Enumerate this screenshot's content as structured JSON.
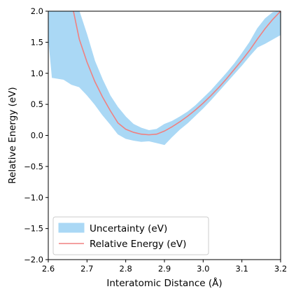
{
  "chart_data": {
    "type": "line",
    "title": "",
    "xlabel": "Interatomic Distance (Å)",
    "ylabel": "Relative Energy (eV)",
    "xlim": [
      2.6,
      3.2
    ],
    "ylim": [
      -2.0,
      2.0
    ],
    "xticks": [
      2.6,
      2.7,
      2.8,
      2.9,
      3.0,
      3.1,
      3.2
    ],
    "xtick_labels": [
      "2.6",
      "2.7",
      "2.8",
      "2.9",
      "3.0",
      "3.1",
      "3.2"
    ],
    "yticks": [
      -2.0,
      -1.5,
      -1.0,
      -0.5,
      0.0,
      0.5,
      1.0,
      1.5,
      2.0
    ],
    "ytick_labels": [
      "−2.0",
      "−1.5",
      "−1.0",
      "−0.5",
      "0.0",
      "0.5",
      "1.0",
      "1.5",
      "2.0"
    ],
    "grid": false,
    "legend_position": "lower-left",
    "series": [
      {
        "name": "Relative Energy (eV)",
        "kind": "line",
        "color": "#f08080",
        "x": [
          2.665,
          2.68,
          2.7,
          2.72,
          2.74,
          2.76,
          2.78,
          2.8,
          2.82,
          2.84,
          2.86,
          2.88,
          2.9,
          2.92,
          2.94,
          2.96,
          2.98,
          3.0,
          3.02,
          3.04,
          3.06,
          3.08,
          3.1,
          3.12,
          3.14,
          3.16,
          3.18,
          3.2
        ],
        "y": [
          2.0,
          1.55,
          1.18,
          0.87,
          0.62,
          0.4,
          0.2,
          0.1,
          0.05,
          0.02,
          0.01,
          0.02,
          0.07,
          0.14,
          0.22,
          0.31,
          0.41,
          0.52,
          0.64,
          0.77,
          0.91,
          1.06,
          1.21,
          1.37,
          1.55,
          1.72,
          1.87,
          2.0
        ]
      },
      {
        "name": "Uncertainty (eV)",
        "kind": "band",
        "color": "#aad8f5",
        "x": [
          2.6,
          2.61,
          2.64,
          2.66,
          2.68,
          2.7,
          2.72,
          2.74,
          2.76,
          2.78,
          2.8,
          2.82,
          2.84,
          2.86,
          2.88,
          2.9,
          2.92,
          2.94,
          2.96,
          2.98,
          3.0,
          3.02,
          3.04,
          3.06,
          3.08,
          3.1,
          3.12,
          3.14,
          3.16,
          3.18,
          3.2
        ],
        "upper": [
          2.0,
          2.0,
          2.0,
          2.0,
          2.0,
          1.62,
          1.2,
          0.9,
          0.64,
          0.45,
          0.3,
          0.18,
          0.12,
          0.08,
          0.1,
          0.18,
          0.23,
          0.3,
          0.38,
          0.48,
          0.6,
          0.72,
          0.86,
          1.0,
          1.15,
          1.32,
          1.5,
          1.72,
          1.88,
          1.98,
          2.0
        ],
        "lower": [
          1.6,
          0.93,
          0.9,
          0.82,
          0.78,
          0.65,
          0.5,
          0.33,
          0.18,
          0.02,
          -0.05,
          -0.08,
          -0.1,
          -0.09,
          -0.12,
          -0.15,
          -0.02,
          0.1,
          0.2,
          0.32,
          0.44,
          0.57,
          0.71,
          0.85,
          0.99,
          1.13,
          1.28,
          1.42,
          1.48,
          1.55,
          1.62
        ]
      }
    ]
  }
}
